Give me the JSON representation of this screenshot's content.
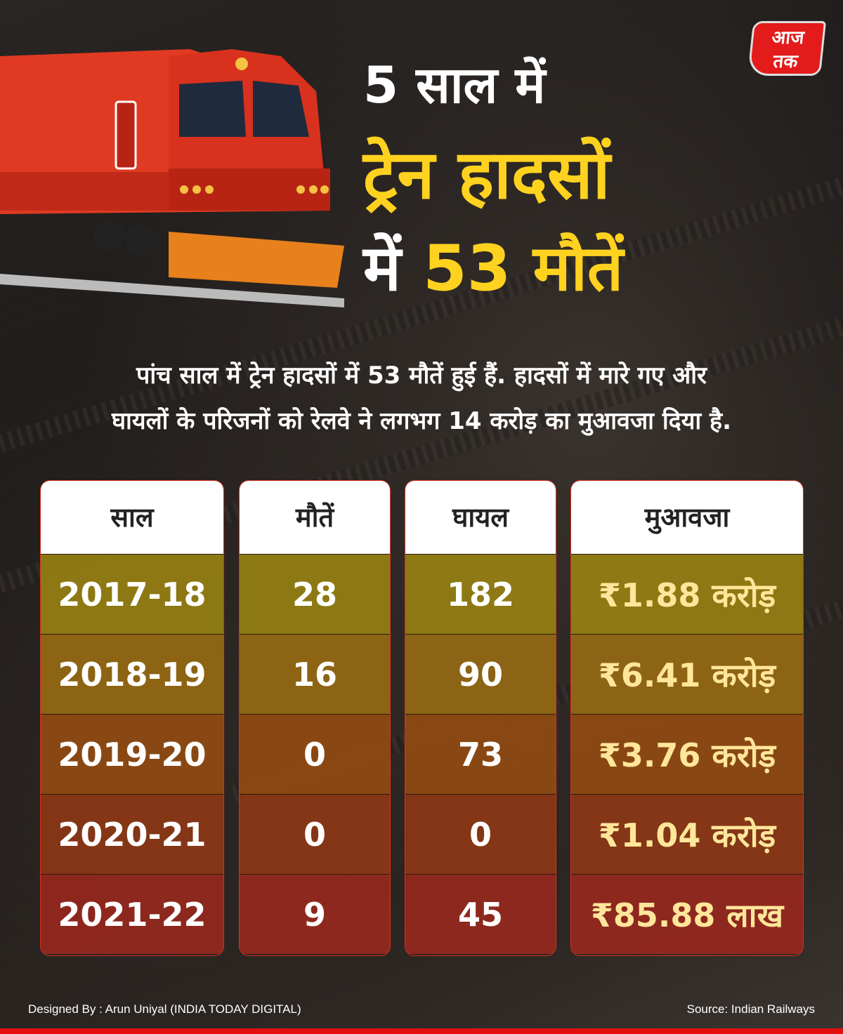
{
  "title": {
    "line1": "5 साल में",
    "line2": "ट्रेन हादसों",
    "line3_prefix": "में",
    "line3_highlight": "53 मौतें"
  },
  "logo": {
    "text_top": "आज",
    "text_bottom": "तक"
  },
  "summary": {
    "line1": "पांच साल में ट्रेन हादसों में 53 मौतें हुई हैं. हादसों में मारे गए और",
    "line2": "घायलों के परिजनों को रेलवे ने लगभग 14 करोड़ का मुआवजा दिया है."
  },
  "table": {
    "headers": [
      "साल",
      "मौतें",
      "घायल",
      "मुआवजा"
    ],
    "years": [
      "2017-18",
      "2018-19",
      "2019-20",
      "2020-21",
      "2021-22"
    ],
    "deaths": [
      "28",
      "16",
      "0",
      "0",
      "9"
    ],
    "injured": [
      "182",
      "90",
      "73",
      "0",
      "45"
    ],
    "compensation": [
      "₹1.88 करोड़",
      "₹6.41 करोड़",
      "₹3.76 करोड़",
      "₹1.04 करोड़",
      "₹85.88 लाख"
    ]
  },
  "footer": {
    "designer": "Designed By : Arun Uniyal (INDIA TODAY DIGITAL)",
    "source": "Source:  Indian Railways"
  },
  "colors": {
    "accent": "#ffd21f",
    "brand_red": "#e31b1b"
  }
}
